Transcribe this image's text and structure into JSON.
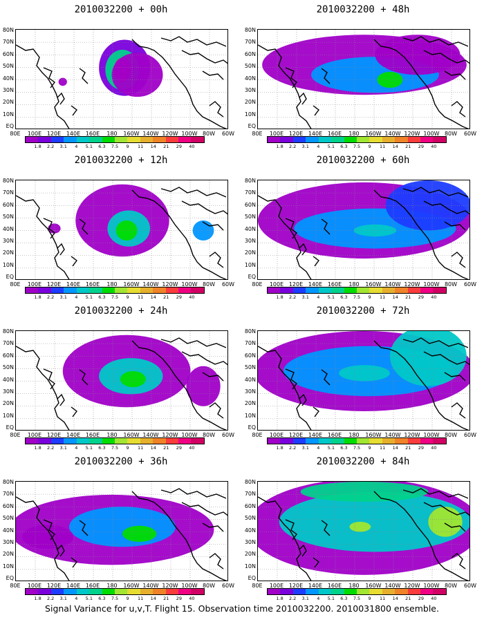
{
  "caption": "Signal Variance for u,v,T. Flight 15. Observation time 2010032200. 2010031800 ensemble.",
  "lat_labels": [
    "80N",
    "70N",
    "60N",
    "50N",
    "40N",
    "30N",
    "20N",
    "10N",
    "EQ"
  ],
  "lon_labels": [
    "80E",
    "100E",
    "120E",
    "140E",
    "160E",
    "180",
    "160W",
    "140W",
    "120W",
    "100W",
    "80W",
    "60W"
  ],
  "colorbar": {
    "levels": [
      "1.8",
      "2.2",
      "3.1",
      "4",
      "5.1",
      "6.3",
      "7.5",
      "9",
      "11",
      "14",
      "21",
      "29",
      "40"
    ],
    "colors": [
      "#a000c8",
      "#7a00dc",
      "#1e3cff",
      "#0096ff",
      "#00c8c8",
      "#00d28c",
      "#00dc00",
      "#a0e632",
      "#e6dc32",
      "#e6af2d",
      "#f08228",
      "#fa3c3c",
      "#f00082",
      "#d20064"
    ]
  },
  "panels": [
    {
      "title": "2010032200 + 00h",
      "col": 0,
      "row": 0
    },
    {
      "title": "2010032200 + 48h",
      "col": 1,
      "row": 0
    },
    {
      "title": "2010032200 + 12h",
      "col": 0,
      "row": 1
    },
    {
      "title": "2010032200 + 60h",
      "col": 1,
      "row": 1
    },
    {
      "title": "2010032200 + 24h",
      "col": 0,
      "row": 2
    },
    {
      "title": "2010032200 + 72h",
      "col": 1,
      "row": 2
    },
    {
      "title": "2010032200 + 36h",
      "col": 0,
      "row": 3
    },
    {
      "title": "2010032200 + 84h",
      "col": 1,
      "row": 3
    }
  ]
}
